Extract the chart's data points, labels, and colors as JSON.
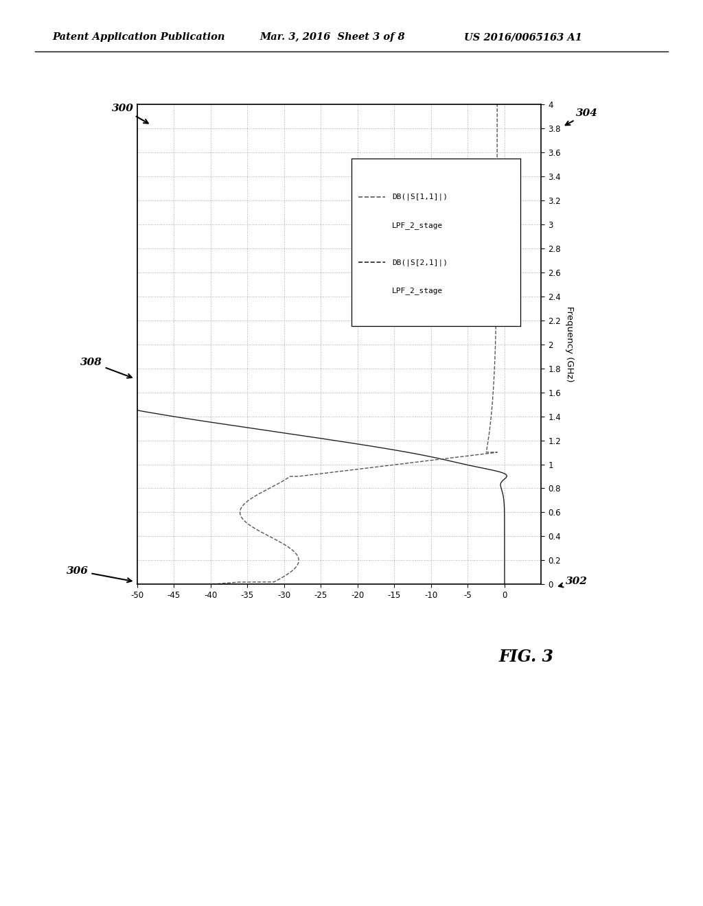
{
  "header_left": "Patent Application Publication",
  "header_center": "Mar. 3, 2016  Sheet 3 of 8",
  "header_right": "US 2016/0065163 A1",
  "fig_label": "FIG. 3",
  "freq_label": "Frequency (GHz)",
  "db_ticks": [
    0,
    -5,
    -10,
    -15,
    -20,
    -25,
    -30,
    -35,
    -40,
    -45,
    -50
  ],
  "freq_ticks": [
    0,
    0.2,
    0.4,
    0.6,
    0.8,
    1,
    1.2,
    1.4,
    1.6,
    1.8,
    2,
    2.2,
    2.4,
    2.6,
    2.8,
    3,
    3.2,
    3.4,
    3.6,
    3.8,
    4
  ],
  "db_lim": [
    -50,
    5
  ],
  "freq_lim": [
    0,
    4
  ],
  "bg_color": "#ffffff",
  "grid_color": "#aaaaaa",
  "s11_color": "#555555",
  "s21_color": "#222222",
  "legend_line1a": "DB(|S[1,1]|)",
  "legend_line1b": "LPF_2_stage",
  "legend_line2a": "DB(|S[2,1]|)",
  "legend_line2b": "LPF_2_stage",
  "ann_300": "300",
  "ann_302": "302",
  "ann_304": "304",
  "ann_306": "306",
  "ann_308": "308"
}
